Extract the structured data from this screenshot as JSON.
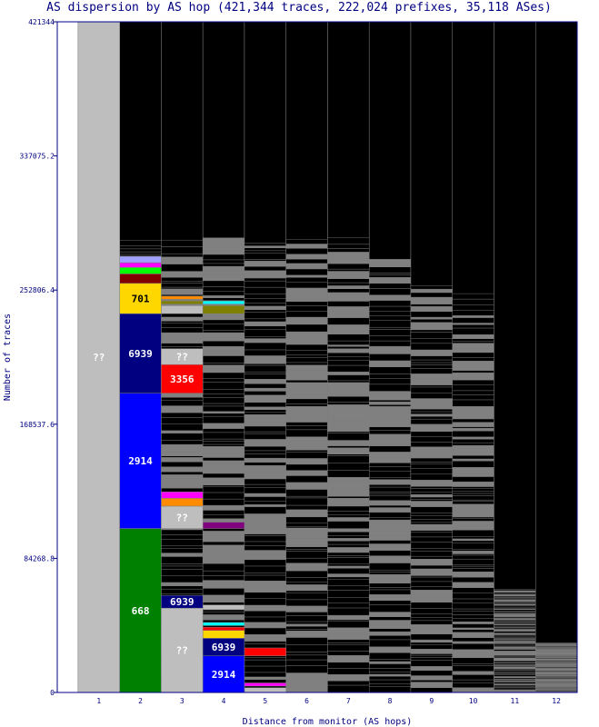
{
  "chart_data": {
    "type": "bar",
    "title": "AS dispersion by AS hop (421,344 traces, 222,024 prefixes, 35,118 ASes)",
    "xlabel": "Distance from monitor (AS hops)",
    "ylabel": "Number of traces",
    "ylim": [
      0,
      421344
    ],
    "y_ticks": [
      "0",
      "84268.8",
      "168537.6",
      "252806.4",
      "337075.2",
      "421344"
    ],
    "categories": [
      "1",
      "2",
      "3",
      "4",
      "5",
      "6",
      "7",
      "8",
      "9",
      "10",
      "11",
      "12"
    ],
    "background_color": "#000000",
    "other_color": "#808080",
    "column_top_traces": [
      421344,
      282000,
      282000,
      282000,
      282000,
      282000,
      282000,
      272000,
      255000,
      250000,
      64000,
      31000
    ],
    "labeled_segments": [
      {
        "hop": "1",
        "label": "??",
        "start": 0,
        "end": 421344,
        "color": "#bebebe"
      },
      {
        "hop": "2",
        "label": "668",
        "start": 0,
        "end": 103000,
        "color": "#008000"
      },
      {
        "hop": "2",
        "label": "2914",
        "start": 103000,
        "end": 188000,
        "color": "#0000ff"
      },
      {
        "hop": "2",
        "label": "6939",
        "start": 188000,
        "end": 238000,
        "color": "#000080"
      },
      {
        "hop": "2",
        "label": "701",
        "start": 238000,
        "end": 257000,
        "color": "#ffd700"
      },
      {
        "hop": "3",
        "label": "??",
        "start": 0,
        "end": 53000,
        "color": "#bebebe"
      },
      {
        "hop": "3",
        "label": "6939",
        "start": 53000,
        "end": 61000,
        "color": "#000080"
      },
      {
        "hop": "3",
        "label": "??",
        "start": 103000,
        "end": 117000,
        "color": "#bebebe"
      },
      {
        "hop": "3",
        "label": "3356",
        "start": 188000,
        "end": 206000,
        "color": "#ff0000"
      },
      {
        "hop": "3",
        "label": "??",
        "start": 206000,
        "end": 216000,
        "color": "#bebebe"
      },
      {
        "hop": "4",
        "label": "2914",
        "start": 0,
        "end": 23000,
        "color": "#0000ff"
      },
      {
        "hop": "4",
        "label": "6939",
        "start": 23000,
        "end": 34000,
        "color": "#000080"
      }
    ],
    "minor_segments": [
      {
        "hop": "2",
        "start": 257000,
        "end": 263000,
        "color": "#800000"
      },
      {
        "hop": "2",
        "start": 263000,
        "end": 267000,
        "color": "#00ff00"
      },
      {
        "hop": "2",
        "start": 267000,
        "end": 270000,
        "color": "#ff00ff"
      },
      {
        "hop": "2",
        "start": 270000,
        "end": 274000,
        "color": "#a0a0ff"
      },
      {
        "hop": "3",
        "start": 117000,
        "end": 122000,
        "color": "#ff8c00"
      },
      {
        "hop": "3",
        "start": 122000,
        "end": 126000,
        "color": "#ff00ff"
      },
      {
        "hop": "3",
        "start": 238000,
        "end": 243000,
        "color": "#bebebe"
      },
      {
        "hop": "3",
        "start": 244000,
        "end": 246000,
        "color": "#808000"
      },
      {
        "hop": "3",
        "start": 247000,
        "end": 249000,
        "color": "#ff8c00"
      },
      {
        "hop": "4",
        "start": 34000,
        "end": 39000,
        "color": "#ffd700"
      },
      {
        "hop": "4",
        "start": 39000,
        "end": 41000,
        "color": "#ff0000"
      },
      {
        "hop": "4",
        "start": 42000,
        "end": 44000,
        "color": "#00ffff"
      },
      {
        "hop": "4",
        "start": 52000,
        "end": 55000,
        "color": "#bebebe"
      },
      {
        "hop": "4",
        "start": 103000,
        "end": 107000,
        "color": "#800080"
      },
      {
        "hop": "4",
        "start": 238000,
        "end": 243000,
        "color": "#808000"
      },
      {
        "hop": "4",
        "start": 244000,
        "end": 246000,
        "color": "#00ffff"
      },
      {
        "hop": "5",
        "start": 23000,
        "end": 28000,
        "color": "#ff0000"
      },
      {
        "hop": "5",
        "start": 4000,
        "end": 6000,
        "color": "#ff00ff"
      },
      {
        "hop": "5",
        "start": 0,
        "end": 3000,
        "color": "#bebebe"
      }
    ]
  }
}
